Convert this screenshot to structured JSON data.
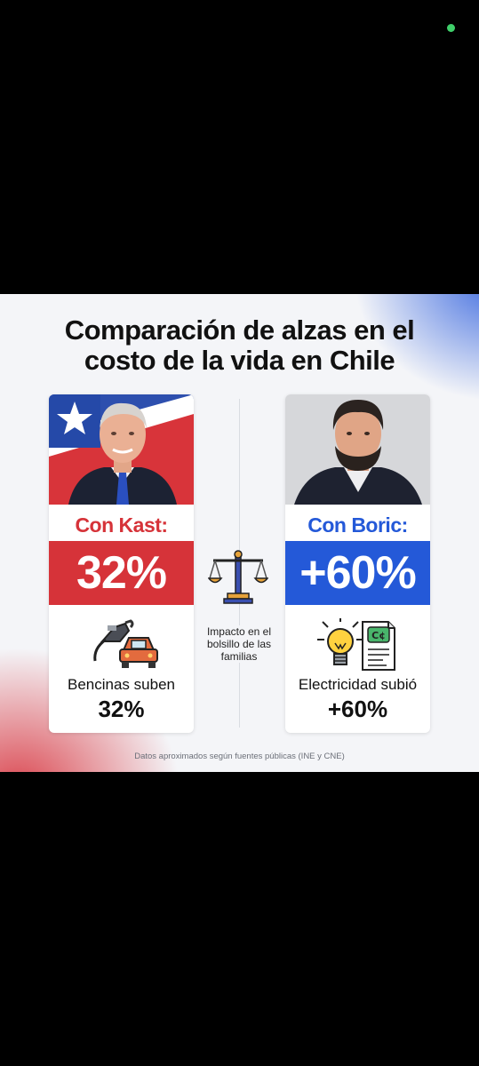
{
  "title_line1": "Comparación de alzas en el",
  "title_line2": "costo de la vida en Chile",
  "left": {
    "label": "Con Kast:",
    "percent": "32%",
    "caption": "Bencinas suben",
    "caption_value": "32%",
    "accent": "#d63339",
    "icons": [
      "fuel-pump-icon",
      "car-icon"
    ]
  },
  "right": {
    "label": "Con Boric:",
    "percent": "+60%",
    "caption": "Electricidad subió",
    "caption_value": "+60%",
    "accent": "#2459d8",
    "icons": [
      "lightbulb-icon",
      "electric-bill-icon"
    ]
  },
  "center_text": "Impacto en el bolsillo de las familias",
  "footer": "Datos aproximados según fuentes públicas (INE y CNE)",
  "center_icon": "balance-scale-icon"
}
